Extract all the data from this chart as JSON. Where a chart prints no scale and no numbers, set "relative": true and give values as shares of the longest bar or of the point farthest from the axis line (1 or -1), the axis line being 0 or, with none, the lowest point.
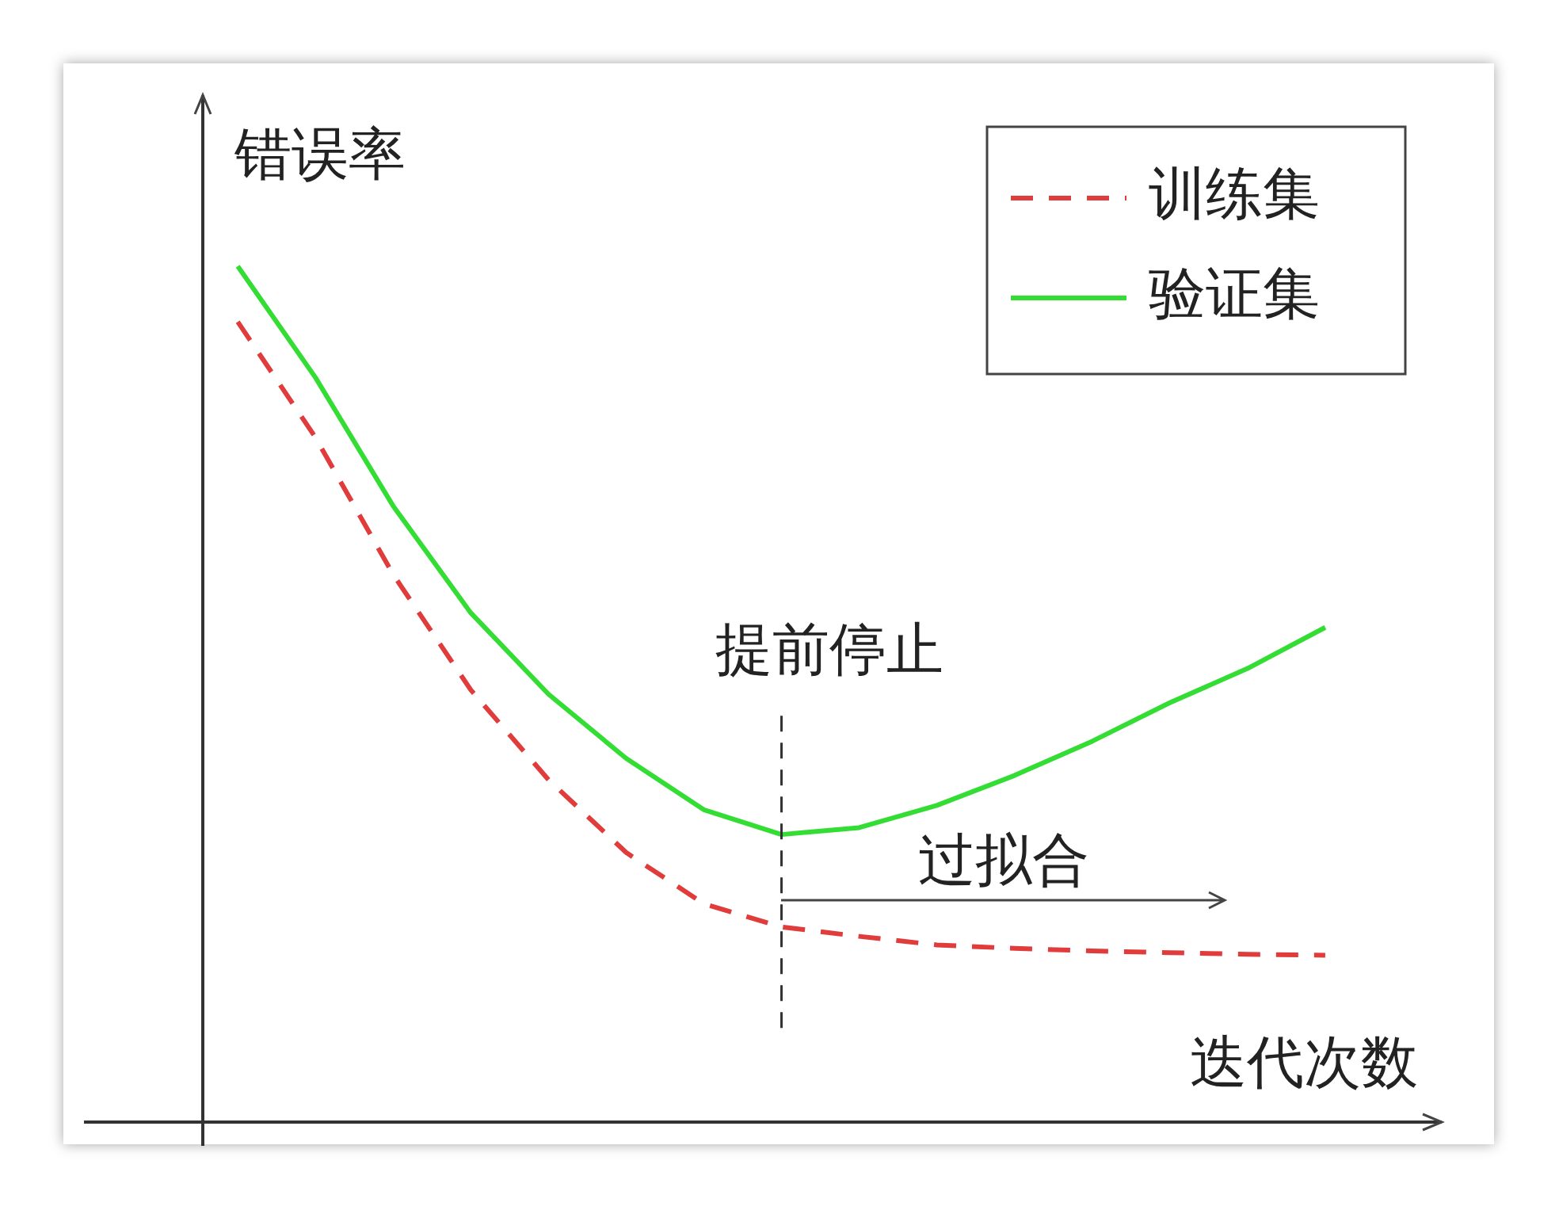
{
  "chart_data": {
    "type": "line",
    "relative": true,
    "xlabel": "迭代次数",
    "ylabel": "错误率",
    "legend": "top right",
    "marker": "none",
    "categories": [
      null,
      null,
      null,
      null,
      null,
      null,
      null,
      null,
      null,
      null,
      null,
      null,
      null,
      null,
      null
    ],
    "series": [
      {
        "name": "训练集",
        "color": "#e03c3c",
        "line_style": "dashed",
        "values": [
          0.935,
          0.8,
          0.64,
          0.505,
          0.4,
          0.315,
          0.255,
          0.228,
          0.217,
          0.207,
          0.203,
          0.2,
          0.198,
          0.196,
          0.195
        ]
      },
      {
        "name": "验证集",
        "color": "#33dd33",
        "line_style": "solid",
        "values": [
          1.0,
          0.87,
          0.72,
          0.595,
          0.5,
          0.425,
          0.365,
          0.336,
          0.344,
          0.37,
          0.405,
          0.445,
          0.49,
          0.53,
          0.578
        ]
      }
    ],
    "annotations": [
      "提前停止",
      "过拟合"
    ]
  }
}
